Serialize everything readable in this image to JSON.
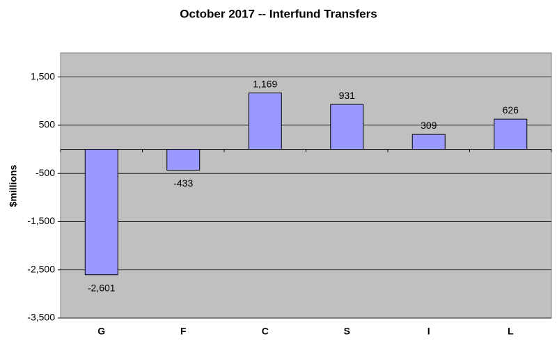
{
  "chart_data": {
    "type": "bar",
    "title": "October 2017 --  Interfund Transfers",
    "y_label": "$millions",
    "categories": [
      "G",
      "F",
      "C",
      "S",
      "I",
      "L"
    ],
    "values": [
      -2601,
      -433,
      1169,
      931,
      309,
      626
    ],
    "value_labels": [
      "-2,601",
      "-433",
      "1,169",
      "931",
      "309",
      "626"
    ],
    "color": "#9999ff",
    "ylim": [
      -3500,
      2000
    ],
    "yticks": [
      {
        "value": -3500,
        "label": "-3,500"
      },
      {
        "value": -2500,
        "label": "-2,500"
      },
      {
        "value": -1500,
        "label": "-1,500"
      },
      -500,
      500,
      {
        "value": 1500,
        "label": "1,500"
      }
    ],
    "grid": true
  }
}
